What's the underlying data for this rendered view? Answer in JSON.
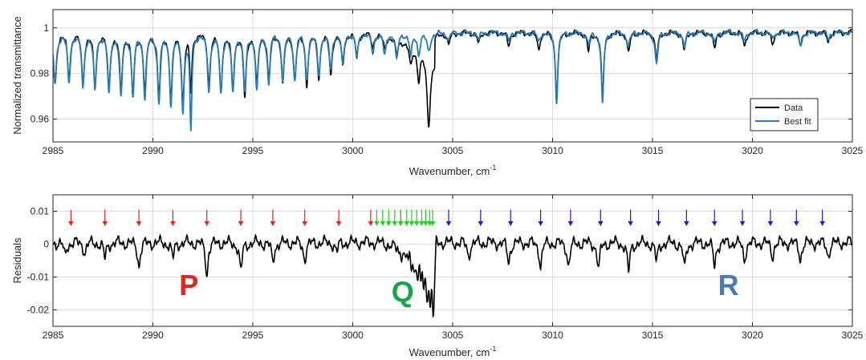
{
  "chart_data": [
    {
      "type": "line",
      "xlabel": "Wavenumber, cm",
      "xlabel_sup": "-1",
      "ylabel": "Normalized transmittance",
      "xlim": [
        2985,
        3025
      ],
      "ylim": [
        0.95,
        1.008
      ],
      "xticks": [
        2985,
        2990,
        2995,
        3000,
        3005,
        3010,
        3015,
        3020,
        3025
      ],
      "xtick_labels": [
        "2985",
        "2990",
        "2995",
        "3000",
        "3005",
        "3010",
        "3015",
        "3020",
        "3025"
      ],
      "yticks": [
        0.96,
        0.98,
        1.0
      ],
      "ytick_labels": [
        "0.96",
        "0.98",
        "1"
      ],
      "grid": true,
      "legend_position": "right",
      "series": [
        {
          "name": "Data",
          "color": "#000000",
          "baseline": 0.998,
          "lines": [
            {
              "x": 2985.1,
              "depth": 0.022,
              "w": 0.09
            },
            {
              "x": 2985.8,
              "depth": 0.02,
              "w": 0.08
            },
            {
              "x": 2986.5,
              "depth": 0.022,
              "w": 0.08
            },
            {
              "x": 2987.1,
              "depth": 0.023,
              "w": 0.08
            },
            {
              "x": 2987.8,
              "depth": 0.024,
              "w": 0.08
            },
            {
              "x": 2988.4,
              "depth": 0.025,
              "w": 0.08
            },
            {
              "x": 2989.0,
              "depth": 0.027,
              "w": 0.08
            },
            {
              "x": 2989.6,
              "depth": 0.026,
              "w": 0.08
            },
            {
              "x": 2990.3,
              "depth": 0.027,
              "w": 0.08
            },
            {
              "x": 2990.9,
              "depth": 0.028,
              "w": 0.08
            },
            {
              "x": 2991.5,
              "depth": 0.03,
              "w": 0.08
            },
            {
              "x": 2991.9,
              "depth": 0.025,
              "w": 0.06
            },
            {
              "x": 2992.8,
              "depth": 0.022,
              "w": 0.08
            },
            {
              "x": 2993.4,
              "depth": 0.025,
              "w": 0.08
            },
            {
              "x": 2994.0,
              "depth": 0.024,
              "w": 0.08
            },
            {
              "x": 2994.6,
              "depth": 0.028,
              "w": 0.08
            },
            {
              "x": 2995.2,
              "depth": 0.022,
              "w": 0.08
            },
            {
              "x": 2995.8,
              "depth": 0.02,
              "w": 0.08
            },
            {
              "x": 2996.5,
              "depth": 0.022,
              "w": 0.08
            },
            {
              "x": 2997.1,
              "depth": 0.02,
              "w": 0.08
            },
            {
              "x": 2997.7,
              "depth": 0.022,
              "w": 0.08
            },
            {
              "x": 2998.3,
              "depth": 0.019,
              "w": 0.08
            },
            {
              "x": 2998.9,
              "depth": 0.018,
              "w": 0.08
            },
            {
              "x": 2999.5,
              "depth": 0.014,
              "w": 0.08
            },
            {
              "x": 3000.2,
              "depth": 0.01,
              "w": 0.08
            },
            {
              "x": 3001.0,
              "depth": 0.006,
              "w": 0.08
            },
            {
              "x": 3001.6,
              "depth": 0.006,
              "w": 0.08
            },
            {
              "x": 3002.2,
              "depth": 0.007,
              "w": 0.08
            },
            {
              "x": 3002.9,
              "depth": 0.009,
              "w": 0.08
            },
            {
              "x": 3003.3,
              "depth": 0.013,
              "w": 0.08
            },
            {
              "x": 3003.8,
              "depth": 0.03,
              "w": 0.1
            },
            {
              "x": 3004.8,
              "depth": 0.005,
              "w": 0.08
            },
            {
              "x": 3006.3,
              "depth": 0.005,
              "w": 0.08
            },
            {
              "x": 3007.8,
              "depth": 0.006,
              "w": 0.08
            },
            {
              "x": 3009.3,
              "depth": 0.007,
              "w": 0.08
            },
            {
              "x": 3010.2,
              "depth": 0.03,
              "w": 0.07
            },
            {
              "x": 3011.8,
              "depth": 0.008,
              "w": 0.08
            },
            {
              "x": 3012.5,
              "depth": 0.03,
              "w": 0.07
            },
            {
              "x": 3013.8,
              "depth": 0.009,
              "w": 0.08
            },
            {
              "x": 3015.2,
              "depth": 0.012,
              "w": 0.08
            },
            {
              "x": 3016.6,
              "depth": 0.008,
              "w": 0.08
            },
            {
              "x": 3018.1,
              "depth": 0.007,
              "w": 0.08
            },
            {
              "x": 3019.6,
              "depth": 0.006,
              "w": 0.08
            },
            {
              "x": 3021.0,
              "depth": 0.005,
              "w": 0.08
            },
            {
              "x": 3022.4,
              "depth": 0.005,
              "w": 0.08
            },
            {
              "x": 3023.8,
              "depth": 0.004,
              "w": 0.08
            }
          ]
        },
        {
          "name": "Best fit",
          "color": "#2a7ab9",
          "baseline": 0.998,
          "lines": [
            {
              "x": 2985.1,
              "depth": 0.022,
              "w": 0.09
            },
            {
              "x": 2985.8,
              "depth": 0.022,
              "w": 0.08
            },
            {
              "x": 2986.5,
              "depth": 0.024,
              "w": 0.08
            },
            {
              "x": 2987.1,
              "depth": 0.025,
              "w": 0.08
            },
            {
              "x": 2987.8,
              "depth": 0.026,
              "w": 0.08
            },
            {
              "x": 2988.4,
              "depth": 0.028,
              "w": 0.08
            },
            {
              "x": 2989.0,
              "depth": 0.027,
              "w": 0.08
            },
            {
              "x": 2989.6,
              "depth": 0.028,
              "w": 0.08
            },
            {
              "x": 2990.3,
              "depth": 0.03,
              "w": 0.08
            },
            {
              "x": 2990.9,
              "depth": 0.03,
              "w": 0.08
            },
            {
              "x": 2991.5,
              "depth": 0.033,
              "w": 0.08
            },
            {
              "x": 2991.9,
              "depth": 0.042,
              "w": 0.06
            },
            {
              "x": 2992.8,
              "depth": 0.025,
              "w": 0.08
            },
            {
              "x": 2993.4,
              "depth": 0.026,
              "w": 0.08
            },
            {
              "x": 2994.0,
              "depth": 0.026,
              "w": 0.08
            },
            {
              "x": 2994.6,
              "depth": 0.025,
              "w": 0.08
            },
            {
              "x": 2995.2,
              "depth": 0.024,
              "w": 0.08
            },
            {
              "x": 2995.8,
              "depth": 0.022,
              "w": 0.08
            },
            {
              "x": 2996.5,
              "depth": 0.02,
              "w": 0.08
            },
            {
              "x": 2997.1,
              "depth": 0.02,
              "w": 0.08
            },
            {
              "x": 2997.7,
              "depth": 0.02,
              "w": 0.08
            },
            {
              "x": 2998.3,
              "depth": 0.018,
              "w": 0.08
            },
            {
              "x": 2998.9,
              "depth": 0.016,
              "w": 0.08
            },
            {
              "x": 2999.5,
              "depth": 0.014,
              "w": 0.08
            },
            {
              "x": 3000.2,
              "depth": 0.011,
              "w": 0.08
            },
            {
              "x": 3001.0,
              "depth": 0.009,
              "w": 0.08
            },
            {
              "x": 3001.6,
              "depth": 0.01,
              "w": 0.08
            },
            {
              "x": 3002.2,
              "depth": 0.012,
              "w": 0.08
            },
            {
              "x": 3002.9,
              "depth": 0.01,
              "w": 0.08
            },
            {
              "x": 3003.3,
              "depth": 0.009,
              "w": 0.08
            },
            {
              "x": 3003.8,
              "depth": 0.008,
              "w": 0.1
            },
            {
              "x": 3004.8,
              "depth": 0.003,
              "w": 0.08
            },
            {
              "x": 3006.3,
              "depth": 0.003,
              "w": 0.08
            },
            {
              "x": 3007.8,
              "depth": 0.004,
              "w": 0.08
            },
            {
              "x": 3009.3,
              "depth": 0.004,
              "w": 0.08
            },
            {
              "x": 3010.2,
              "depth": 0.03,
              "w": 0.07
            },
            {
              "x": 3011.8,
              "depth": 0.005,
              "w": 0.08
            },
            {
              "x": 3012.5,
              "depth": 0.032,
              "w": 0.07
            },
            {
              "x": 3013.8,
              "depth": 0.006,
              "w": 0.08
            },
            {
              "x": 3015.2,
              "depth": 0.014,
              "w": 0.08
            },
            {
              "x": 3016.6,
              "depth": 0.006,
              "w": 0.08
            },
            {
              "x": 3018.1,
              "depth": 0.005,
              "w": 0.08
            },
            {
              "x": 3019.6,
              "depth": 0.004,
              "w": 0.08
            },
            {
              "x": 3021.0,
              "depth": 0.003,
              "w": 0.08
            },
            {
              "x": 3022.4,
              "depth": 0.006,
              "w": 0.08
            },
            {
              "x": 3023.8,
              "depth": 0.003,
              "w": 0.08
            }
          ]
        }
      ]
    },
    {
      "type": "line",
      "xlabel": "Wavenumber, cm",
      "xlabel_sup": "-1",
      "ylabel": "Residuals",
      "xlim": [
        2985,
        3025
      ],
      "ylim": [
        -0.025,
        0.015
      ],
      "xticks": [
        2985,
        2990,
        2995,
        3000,
        3005,
        3010,
        3015,
        3020,
        3025
      ],
      "xtick_labels": [
        "2985",
        "2990",
        "2995",
        "3000",
        "3005",
        "3010",
        "3015",
        "3020",
        "3025"
      ],
      "yticks": [
        -0.02,
        -0.01,
        0.0,
        0.01
      ],
      "ytick_labels": [
        "-0.02",
        "-0.01",
        "0",
        "0.01"
      ],
      "grid": true,
      "series": [
        {
          "color": "#000000",
          "lines": [
            {
              "x": 2985.6,
              "depth": 0.004,
              "w": 0.08
            },
            {
              "x": 2986.6,
              "depth": 0.003,
              "w": 0.08
            },
            {
              "x": 2987.6,
              "depth": 0.005,
              "w": 0.08
            },
            {
              "x": 2989.3,
              "depth": 0.007,
              "w": 0.08
            },
            {
              "x": 2991.0,
              "depth": 0.005,
              "w": 0.08
            },
            {
              "x": 2992.7,
              "depth": 0.01,
              "w": 0.07
            },
            {
              "x": 2994.4,
              "depth": 0.009,
              "w": 0.08
            },
            {
              "x": 2996.0,
              "depth": 0.006,
              "w": 0.08
            },
            {
              "x": 2997.6,
              "depth": 0.005,
              "w": 0.08
            },
            {
              "x": 2999.2,
              "depth": 0.003,
              "w": 0.08
            },
            {
              "x": 3005.8,
              "depth": 0.004,
              "w": 0.08
            },
            {
              "x": 3007.8,
              "depth": 0.006,
              "w": 0.08
            },
            {
              "x": 3009.4,
              "depth": 0.007,
              "w": 0.08
            },
            {
              "x": 3010.8,
              "depth": 0.007,
              "w": 0.08
            },
            {
              "x": 3012.3,
              "depth": 0.008,
              "w": 0.08
            },
            {
              "x": 3013.8,
              "depth": 0.009,
              "w": 0.08
            },
            {
              "x": 3015.2,
              "depth": 0.006,
              "w": 0.08
            },
            {
              "x": 3016.6,
              "depth": 0.008,
              "w": 0.08
            },
            {
              "x": 3018.1,
              "depth": 0.007,
              "w": 0.08
            },
            {
              "x": 3019.6,
              "depth": 0.005,
              "w": 0.08
            },
            {
              "x": 3021.0,
              "depth": 0.004,
              "w": 0.08
            },
            {
              "x": 3022.4,
              "depth": 0.005,
              "w": 0.08
            },
            {
              "x": 3023.8,
              "depth": 0.004,
              "w": 0.08
            }
          ],
          "q_band": {
            "start": 3001.0,
            "end": 3004.05,
            "min": -0.0225
          }
        }
      ],
      "annotations": {
        "labels": [
          {
            "text": "P",
            "x": 2991.8,
            "y": -0.0155,
            "color": "#e8231b"
          },
          {
            "text": "Q",
            "x": 3002.5,
            "y": -0.0175,
            "color": "#15a64a"
          },
          {
            "text": "R",
            "x": 3018.8,
            "y": -0.0155,
            "color": "#4a7ab8"
          }
        ],
        "arrows": [
          {
            "branch": "P",
            "color": "#e8231b",
            "x": [
              2985.9,
              2987.6,
              2989.3,
              2991.0,
              2992.7,
              2994.4,
              2996.0,
              2997.6,
              2999.3,
              3000.9,
              3002.4
            ]
          },
          {
            "branch": "Q",
            "color": "#22d022",
            "x": [
              3001.2,
              3001.5,
              3001.8,
              3002.1,
              3002.4,
              3002.7,
              3002.95,
              3003.2,
              3003.45,
              3003.65,
              3003.85,
              3004.0
            ]
          },
          {
            "branch": "R",
            "color": "#1a1ad6",
            "x": [
              3004.8,
              3006.4,
              3007.9,
              3009.4,
              3010.9,
              3012.4,
              3013.9,
              3015.3,
              3016.7,
              3018.1,
              3019.5,
              3020.9,
              3022.2,
              3023.5
            ]
          }
        ]
      }
    }
  ]
}
